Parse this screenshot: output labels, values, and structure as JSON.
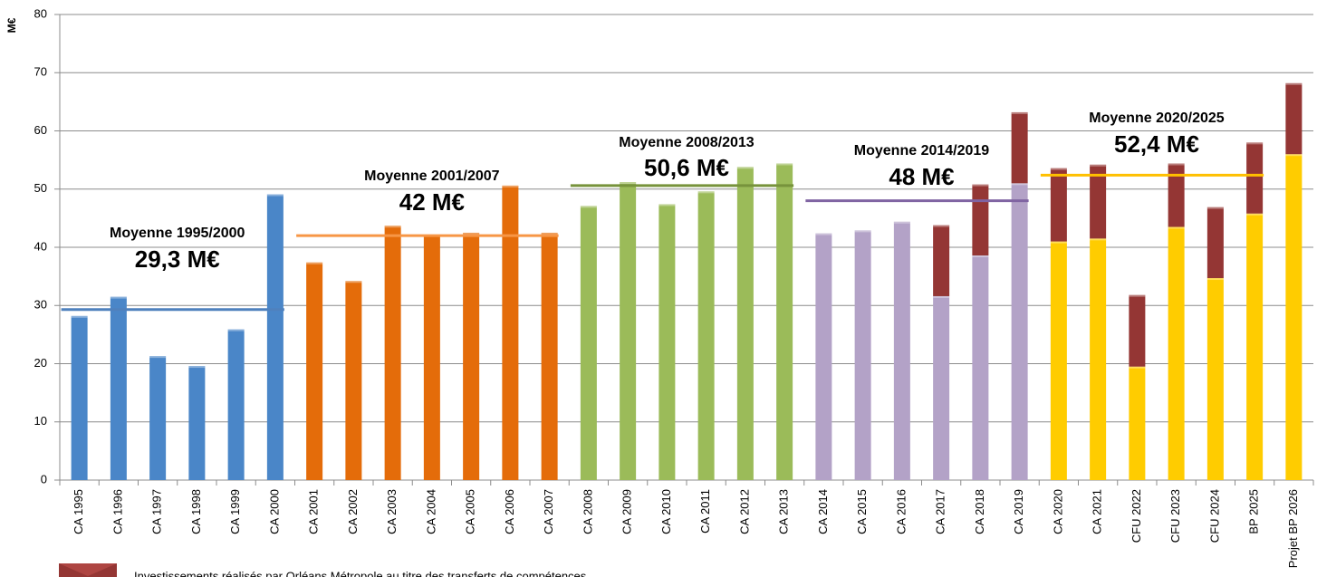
{
  "chart_data": {
    "type": "bar",
    "y_label": "M€",
    "categories": [
      "CA 1995",
      "CA 1996",
      "CA 1997",
      "CA 1998",
      "CA 1999",
      "CA 2000",
      "CA 2001",
      "CA 2002",
      "CA 2003",
      "CA 2004",
      "CA 2005",
      "CA 2006",
      "CA 2007",
      "CA 2008",
      "CA 2009",
      "CA 2010",
      "CA 2011",
      "CA 2012",
      "CA 2013",
      "CA 2014",
      "CA 2015",
      "CA 2016",
      "CA 2017",
      "CA 2018",
      "CA 2019",
      "CA 2020",
      "CA 2021",
      "CFU 2022",
      "CFU 2023",
      "CFU 2024",
      "BP 2025",
      "Projet BP 2026"
    ],
    "series": [
      {
        "colors": [
          "#4a86c8",
          "#4a86c8",
          "#4a86c8",
          "#4a86c8",
          "#4a86c8",
          "#4a86c8",
          "#e46c0a",
          "#e46c0a",
          "#e46c0a",
          "#e46c0a",
          "#e46c0a",
          "#e46c0a",
          "#e46c0a",
          "#9bbb59",
          "#9bbb59",
          "#9bbb59",
          "#9bbb59",
          "#9bbb59",
          "#9bbb59",
          "#b3a2c7",
          "#b3a2c7",
          "#b3a2c7",
          "#b3a2c7",
          "#b3a2c7",
          "#b3a2c7",
          "#ffcc00",
          "#ffcc00",
          "#ffcc00",
          "#ffcc00",
          "#ffcc00",
          "#ffcc00",
          "#ffcc00"
        ],
        "values": [
          28.2,
          31.5,
          21.3,
          19.6,
          25.9,
          49.1,
          37.4,
          34.2,
          43.7,
          42.1,
          42.5,
          50.6,
          42.5,
          47.1,
          51.2,
          47.4,
          49.6,
          53.8,
          54.4,
          42.4,
          42.9,
          44.4,
          31.6,
          38.6,
          51,
          41,
          41.5,
          19.5,
          43.5,
          34.7,
          45.8,
          56
        ]
      },
      {
        "name": "Investissements réalisés par Orléans Métropole au titre des transferts de compétences",
        "color": "#943634",
        "values": [
          null,
          null,
          null,
          null,
          null,
          null,
          null,
          null,
          null,
          null,
          null,
          null,
          null,
          null,
          null,
          null,
          null,
          null,
          null,
          null,
          null,
          null,
          12.2,
          12.2,
          12.2,
          12.6,
          12.7,
          12.3,
          10.9,
          12.2,
          12.2,
          12.2
        ]
      }
    ],
    "averages": [
      {
        "label": "Moyenne 1995/2000",
        "value_label": "29,3 M€",
        "value": 29.3,
        "start": "CA 1995",
        "end": "CA 2000",
        "color": "#4f81bd",
        "text_color": "#558ed5"
      },
      {
        "label": "Moyenne 2001/2007",
        "value_label": "42 M€",
        "value": 42,
        "start": "CA 2001",
        "end": "CA 2007",
        "color": "#f79646",
        "text_color": "#e46c0a"
      },
      {
        "label": "Moyenne 2008/2013",
        "value_label": "50,6 M€",
        "value": 50.6,
        "start": "CA 2008",
        "end": "CA 2013",
        "color": "#77933c",
        "text_color": "#9bbb59"
      },
      {
        "label": "Moyenne 2014/2019",
        "value_label": "48 M€",
        "value": 48,
        "start": "CA 2014",
        "end": "CA 2019",
        "color": "#8064a2",
        "text_color": "#b3a2c7"
      },
      {
        "label": "Moyenne 2020/2025",
        "value_label": "52,4 M€",
        "value": 52.4,
        "start": "CA 2020",
        "end": "BP 2025",
        "color": "#ffc000",
        "text_color": "#ffc000"
      }
    ],
    "ylim": [
      0,
      80
    ],
    "yticks": [
      0,
      10,
      20,
      30,
      40,
      50,
      60,
      70,
      80
    ],
    "grid": true
  }
}
